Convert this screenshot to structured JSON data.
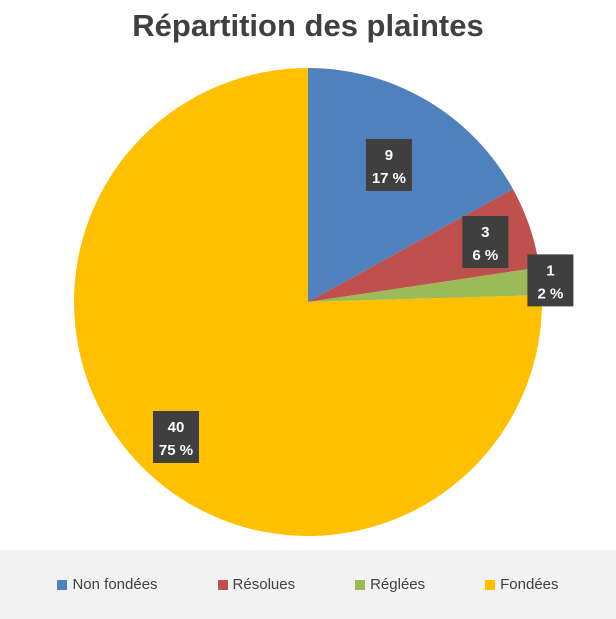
{
  "chart_data": {
    "type": "pie",
    "title": "Répartition des plaintes",
    "categories": [
      "Non fondées",
      "Résolues",
      "Réglées",
      "Fondées"
    ],
    "values": [
      9,
      3,
      1,
      40
    ],
    "percent_labels": [
      "17 %",
      "6 %",
      "2 %",
      "75 %"
    ],
    "colors": [
      "#4f81bd",
      "#c0504d",
      "#9bbb59",
      "#ffc000"
    ],
    "legend_position": "bottom",
    "start_angle": "12 o'clock, clockwise"
  }
}
